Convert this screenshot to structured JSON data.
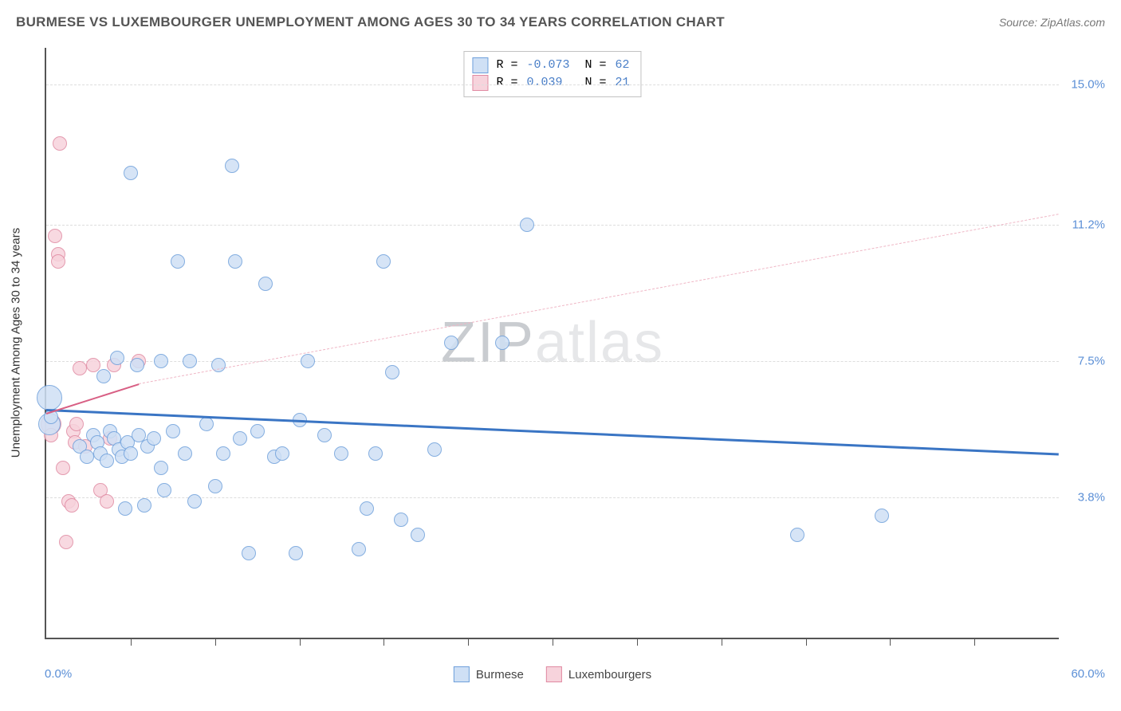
{
  "title": "BURMESE VS LUXEMBOURGER UNEMPLOYMENT AMONG AGES 30 TO 34 YEARS CORRELATION CHART",
  "source": "Source: ZipAtlas.com",
  "watermark": {
    "z": "Z",
    "ip": "IP",
    "rest": "atlas"
  },
  "chart": {
    "type": "scatter",
    "background_color": "#ffffff",
    "grid_color": "#dddddd",
    "axis_color": "#555555",
    "yaxis_title": "Unemployment Among Ages 30 to 34 years",
    "xlim": [
      0,
      60
    ],
    "ylim": [
      0,
      16
    ],
    "x_end_labels": {
      "min": "0.0%",
      "max": "60.0%"
    },
    "y_ticks": [
      {
        "v": 3.8,
        "label": "3.8%"
      },
      {
        "v": 7.5,
        "label": "7.5%"
      },
      {
        "v": 11.2,
        "label": "11.2%"
      },
      {
        "v": 15.0,
        "label": "15.0%"
      }
    ],
    "x_tick_positions": [
      5,
      10,
      15,
      20,
      25,
      30,
      35,
      40,
      45,
      50,
      55
    ],
    "marker_radius": 9,
    "marker_border_width": 1.4,
    "label_color": "#5b8fd6",
    "series": [
      {
        "name": "Burmese",
        "fill": "#cfe0f5",
        "stroke": "#6fa0db",
        "reg_line": {
          "x1": 0,
          "y1": 6.2,
          "x2": 60,
          "y2": 5.0,
          "solid": true,
          "stroke": "#3a75c4",
          "width": 3
        },
        "R": "-0.073",
        "N": "62",
        "points": [
          {
            "x": 0.2,
            "y": 6.5,
            "r": 16
          },
          {
            "x": 0.2,
            "y": 5.8,
            "r": 14
          },
          {
            "x": 0.3,
            "y": 6.0
          },
          {
            "x": 2.0,
            "y": 5.2
          },
          {
            "x": 2.4,
            "y": 4.9
          },
          {
            "x": 2.8,
            "y": 5.5
          },
          {
            "x": 3.0,
            "y": 5.3
          },
          {
            "x": 3.2,
            "y": 5.0
          },
          {
            "x": 3.4,
            "y": 7.1
          },
          {
            "x": 3.6,
            "y": 4.8
          },
          {
            "x": 3.8,
            "y": 5.6
          },
          {
            "x": 4.0,
            "y": 5.4
          },
          {
            "x": 4.2,
            "y": 7.6
          },
          {
            "x": 4.3,
            "y": 5.1
          },
          {
            "x": 4.5,
            "y": 4.9
          },
          {
            "x": 4.7,
            "y": 3.5
          },
          {
            "x": 4.8,
            "y": 5.3
          },
          {
            "x": 5.0,
            "y": 5.0
          },
          {
            "x": 5.4,
            "y": 7.4
          },
          {
            "x": 5.5,
            "y": 5.5
          },
          {
            "x": 5.8,
            "y": 3.6
          },
          {
            "x": 5.0,
            "y": 12.6
          },
          {
            "x": 6.0,
            "y": 5.2
          },
          {
            "x": 6.4,
            "y": 5.4
          },
          {
            "x": 6.8,
            "y": 7.5
          },
          {
            "x": 7.0,
            "y": 4.0
          },
          {
            "x": 7.5,
            "y": 5.6
          },
          {
            "x": 7.8,
            "y": 10.2
          },
          {
            "x": 8.2,
            "y": 5.0
          },
          {
            "x": 8.5,
            "y": 7.5
          },
          {
            "x": 8.8,
            "y": 3.7
          },
          {
            "x": 9.5,
            "y": 5.8
          },
          {
            "x": 10.0,
            "y": 4.1
          },
          {
            "x": 10.2,
            "y": 7.4
          },
          {
            "x": 10.5,
            "y": 5.0
          },
          {
            "x": 11.0,
            "y": 12.8
          },
          {
            "x": 11.2,
            "y": 10.2
          },
          {
            "x": 11.5,
            "y": 5.4
          },
          {
            "x": 12.0,
            "y": 2.3
          },
          {
            "x": 12.5,
            "y": 5.6
          },
          {
            "x": 13.0,
            "y": 9.6
          },
          {
            "x": 13.5,
            "y": 4.9
          },
          {
            "x": 14.0,
            "y": 5.0
          },
          {
            "x": 14.8,
            "y": 2.3
          },
          {
            "x": 15.5,
            "y": 7.5
          },
          {
            "x": 16.5,
            "y": 5.5
          },
          {
            "x": 17.5,
            "y": 5.0
          },
          {
            "x": 18.5,
            "y": 2.4
          },
          {
            "x": 19.0,
            "y": 3.5
          },
          {
            "x": 19.5,
            "y": 5.0
          },
          {
            "x": 20.0,
            "y": 10.2
          },
          {
            "x": 20.5,
            "y": 7.2
          },
          {
            "x": 21.0,
            "y": 3.2
          },
          {
            "x": 22.0,
            "y": 2.8
          },
          {
            "x": 23.0,
            "y": 5.1
          },
          {
            "x": 24.0,
            "y": 8.0
          },
          {
            "x": 27.0,
            "y": 8.0
          },
          {
            "x": 28.5,
            "y": 11.2
          },
          {
            "x": 44.5,
            "y": 2.8
          },
          {
            "x": 49.5,
            "y": 3.3
          },
          {
            "x": 15.0,
            "y": 5.9
          },
          {
            "x": 6.8,
            "y": 4.6
          }
        ]
      },
      {
        "name": "Luxembourgers",
        "fill": "#f7d3dc",
        "stroke": "#e08aa2",
        "reg_line_solid": {
          "x1": 0,
          "y1": 6.1,
          "x2": 5.5,
          "y2": 6.9,
          "solid": true,
          "stroke": "#d85f84",
          "width": 2.5
        },
        "reg_line_dashed": {
          "x1": 5.5,
          "y1": 6.9,
          "x2": 60,
          "y2": 11.5,
          "solid": false,
          "stroke": "#efb6c5",
          "width": 1.5
        },
        "R": "0.039",
        "N": "21",
        "points": [
          {
            "x": 0.3,
            "y": 5.8,
            "r": 13
          },
          {
            "x": 0.3,
            "y": 5.5
          },
          {
            "x": 0.8,
            "y": 13.4
          },
          {
            "x": 0.5,
            "y": 10.9
          },
          {
            "x": 0.7,
            "y": 10.4
          },
          {
            "x": 0.7,
            "y": 10.2
          },
          {
            "x": 1.0,
            "y": 4.6
          },
          {
            "x": 1.2,
            "y": 2.6
          },
          {
            "x": 1.3,
            "y": 3.7
          },
          {
            "x": 1.5,
            "y": 3.6
          },
          {
            "x": 1.6,
            "y": 5.6
          },
          {
            "x": 1.7,
            "y": 5.3
          },
          {
            "x": 1.8,
            "y": 5.8
          },
          {
            "x": 2.0,
            "y": 7.3
          },
          {
            "x": 2.3,
            "y": 5.2
          },
          {
            "x": 2.8,
            "y": 7.4
          },
          {
            "x": 3.2,
            "y": 4.0
          },
          {
            "x": 3.6,
            "y": 3.7
          },
          {
            "x": 3.8,
            "y": 5.4
          },
          {
            "x": 4.0,
            "y": 7.4
          },
          {
            "x": 5.5,
            "y": 7.5
          }
        ]
      }
    ]
  }
}
